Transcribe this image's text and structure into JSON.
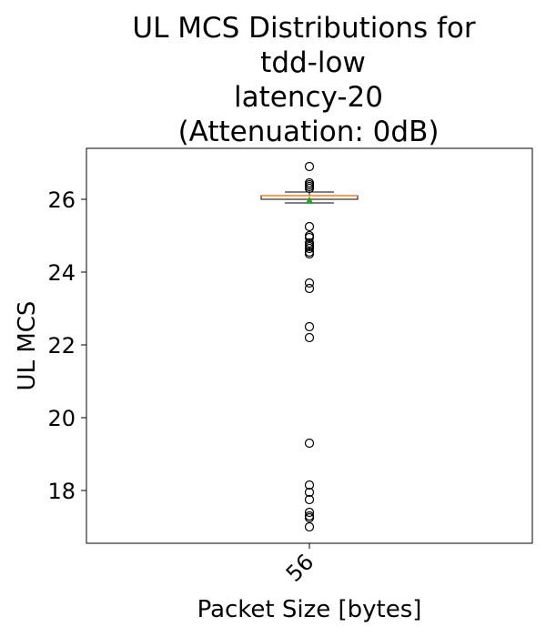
{
  "chart_data": {
    "type": "boxplot",
    "title_lines": [
      "UL MCS Distributions for",
      "tdd-low",
      "latency-20",
      "(Attenuation: 0dB)"
    ],
    "xlabel": "Packet Size [bytes]",
    "ylabel": "UL MCS",
    "categories": [
      "56"
    ],
    "ylim": [
      16.55,
      27.4
    ],
    "yticks": [
      18,
      20,
      22,
      24,
      26
    ],
    "grid": false,
    "boxes": [
      {
        "category": "56",
        "whisker_low": 25.9,
        "q1": 26.0,
        "median": 26.1,
        "q3": 26.1,
        "whisker_high": 26.2,
        "mean": 25.97,
        "outliers": [
          26.9,
          26.45,
          26.4,
          26.35,
          26.3,
          25.25,
          25.0,
          24.95,
          24.8,
          24.75,
          24.7,
          24.65,
          24.55,
          24.5,
          23.7,
          23.55,
          22.5,
          22.2,
          19.3,
          18.15,
          17.95,
          17.75,
          17.4,
          17.3,
          17.25,
          17.0
        ]
      }
    ],
    "colors": {
      "box": "#000000",
      "median": "#ff7f0e",
      "mean": "#2ca02c",
      "outlier": "#000000"
    }
  }
}
